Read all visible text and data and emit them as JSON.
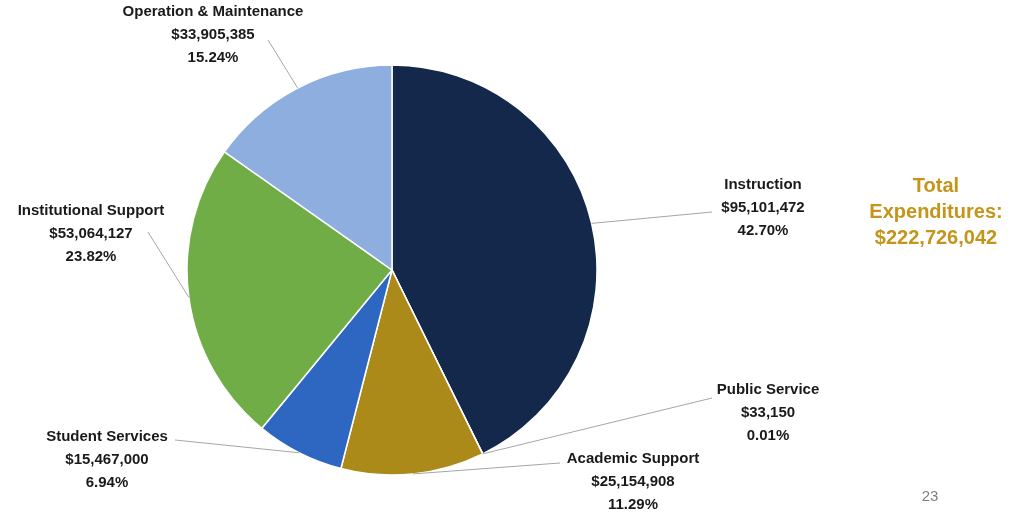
{
  "chart_data": {
    "type": "pie",
    "categories": [
      "Instruction",
      "Public Service",
      "Academic Support",
      "Student Services",
      "Institutional Support",
      "Operation & Maintenance"
    ],
    "values": [
      95101472,
      33150,
      25154908,
      15467000,
      53064127,
      33905385
    ],
    "colors": [
      "#14284b",
      "#7f7f7f",
      "#ab8a1a",
      "#2e67c2",
      "#70ad47",
      "#8faee0"
    ],
    "value_labels": [
      "$95,101,472\n42.70%",
      "$33,150\n0.01%",
      "$25,154,908\n11.29%",
      "$15,467,000\n6.94%",
      "$53,064,127\n23.82%",
      "$33,905,385\n15.24%"
    ],
    "annotations": [
      "Total Expenditures: $222,726,042",
      "23"
    ]
  }
}
